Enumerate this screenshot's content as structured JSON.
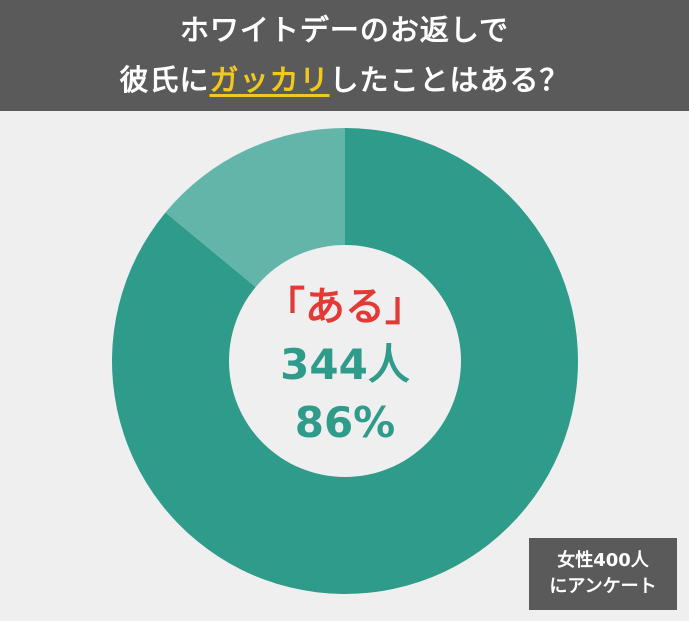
{
  "header": {
    "line1": "ホワイトデーのお返しで",
    "line2_prefix": "彼氏に",
    "line2_highlight": "ガッカリ",
    "line2_suffix": "したことはある？"
  },
  "center": {
    "label": "「ある」",
    "count": "344人",
    "percent": "86%"
  },
  "note": {
    "line1": "女性400人",
    "line2": "にアンケート"
  },
  "colors": {
    "header_bg": "#5a5a5a",
    "highlight": "#f2c81f",
    "yes_slice": "#2e9b8b",
    "no_slice": "#63b5aa",
    "center_label": "#e53935",
    "background": "#efefef"
  },
  "chart_data": {
    "type": "pie",
    "labels": [
      "ある",
      ""
    ],
    "values": [
      86,
      14
    ],
    "counts": [
      344,
      56
    ],
    "total": 400,
    "donut": true
  }
}
